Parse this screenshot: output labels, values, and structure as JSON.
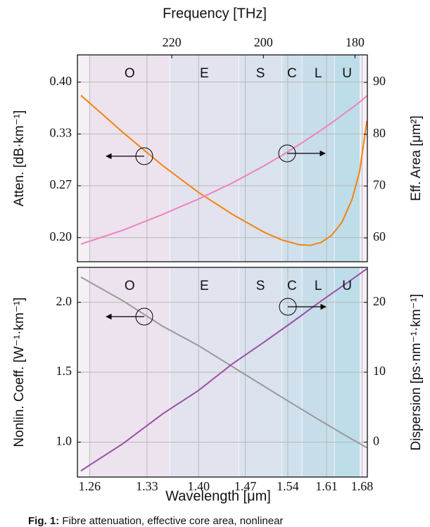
{
  "chart_data": [
    {
      "type": "line",
      "x2label": "Frequency [THz]",
      "x2lim": [
        240.6,
        177.3
      ],
      "x2ticks": [
        220,
        200,
        180
      ],
      "xlim": [
        1.246,
        1.691
      ],
      "xscale": "reciprocal",
      "ylabel": "Atten. [dB·km⁻¹]",
      "ylim": [
        0.169,
        0.435
      ],
      "yticks": [
        {
          "value": 0.2,
          "label": "0.20"
        },
        {
          "value": 0.2667,
          "label": "0.27"
        },
        {
          "value": 0.3333,
          "label": "0.33"
        },
        {
          "value": 0.4,
          "label": "0.40"
        }
      ],
      "y2label": "Eff. Area [μm²]",
      "y2lim": [
        55.4,
        95.3
      ],
      "y2ticks": [
        60,
        70,
        80,
        90
      ],
      "grid": true,
      "bands": [
        "O",
        "E",
        "S",
        "C",
        "L",
        "U"
      ],
      "band_edges": [
        1.26,
        1.36,
        1.46,
        1.53,
        1.565,
        1.625,
        1.675
      ],
      "band_colors": [
        "#ece3ee",
        "#e3e3ef",
        "#dae2ee",
        "#d0e0ec",
        "#c7deea",
        "#bddde9"
      ],
      "x": [
        1.25,
        1.3,
        1.35,
        1.4,
        1.45,
        1.5,
        1.53,
        1.56,
        1.58,
        1.6,
        1.62,
        1.64,
        1.66,
        1.675,
        1.69
      ],
      "series": [
        {
          "name": "Atten.",
          "color": "#f5820f",
          "axis": "y",
          "values": [
            0.383,
            0.335,
            0.293,
            0.258,
            0.23,
            0.207,
            0.197,
            0.191,
            0.19,
            0.194,
            0.203,
            0.22,
            0.25,
            0.285,
            0.35
          ]
        },
        {
          "name": "Eff. Area",
          "color": "#ee82c0",
          "axis": "y2",
          "values": [
            58.8,
            61.5,
            64.5,
            67.5,
            70.6,
            73.9,
            75.9,
            78.0,
            79.4,
            80.8,
            82.2,
            83.7,
            85.1,
            86.2,
            87.4
          ]
        }
      ]
    },
    {
      "type": "line",
      "xlabel": "Wavelength [μm]",
      "xlim": [
        1.246,
        1.691
      ],
      "xscale": "reciprocal",
      "xticks": [
        1.26,
        1.33,
        {
          "value": 1.4,
          "label": "1.40"
        },
        1.47,
        1.54,
        1.61,
        1.68
      ],
      "ylabel": "Nonlin. Coeff. [W⁻¹·km⁻¹]",
      "ylim": [
        0.75,
        2.25
      ],
      "yticks": [
        {
          "value": 1,
          "label": "1.0"
        },
        1.5,
        {
          "value": 2,
          "label": "2.0"
        }
      ],
      "y2label": "Dispersion [ps·nm⁻¹·km⁻¹]",
      "y2lim": [
        -5,
        25
      ],
      "y2ticks": [
        0,
        10,
        20
      ],
      "grid": true,
      "x": [
        1.25,
        1.3,
        1.35,
        1.4,
        1.45,
        1.5,
        1.55,
        1.6,
        1.65,
        1.69
      ],
      "series": [
        {
          "name": "Nonlin. Coeff.",
          "color": "#9a9a9a",
          "axis": "y",
          "values": [
            2.18,
            2.01,
            1.83,
            1.69,
            1.54,
            1.4,
            1.27,
            1.15,
            1.04,
            0.96
          ]
        },
        {
          "name": "Dispersion",
          "color": "#9c4fa8",
          "axis": "y2",
          "values": [
            -4.1,
            -0.2,
            4.0,
            7.4,
            11.2,
            14.3,
            17.3,
            20.2,
            22.8,
            24.8
          ]
        }
      ]
    }
  ],
  "caption_label": "Fig. 1:",
  "caption": "Fibre attenuation, effective core area, nonlinear"
}
